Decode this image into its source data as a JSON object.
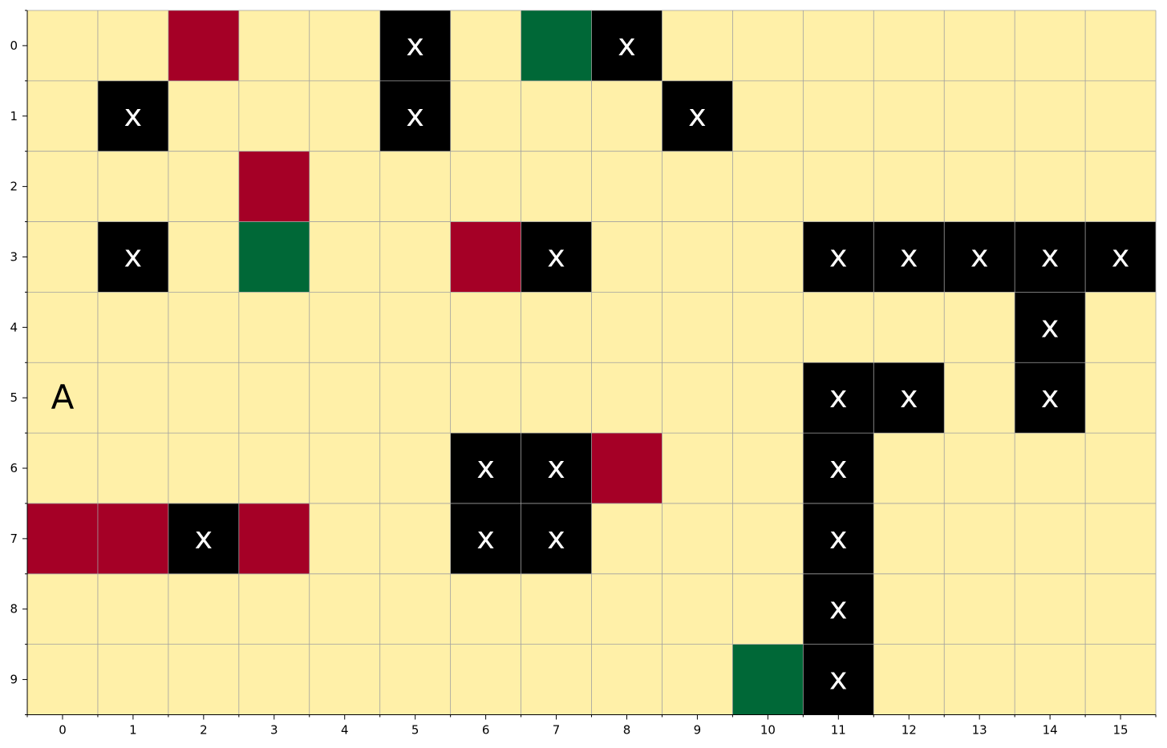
{
  "chart_data": {
    "type": "heatmap",
    "grid": {
      "rows": 10,
      "cols": 16
    },
    "x_ticks": [
      "0",
      "1",
      "2",
      "3",
      "4",
      "5",
      "6",
      "7",
      "8",
      "9",
      "10",
      "11",
      "12",
      "13",
      "14",
      "15"
    ],
    "y_ticks": [
      "0",
      "1",
      "2",
      "3",
      "4",
      "5",
      "6",
      "7",
      "8",
      "9"
    ],
    "colors": {
      "empty": "#fff0a8",
      "wall": "#000000",
      "hazard": "#a50026",
      "goal": "#006837",
      "grid_line": "#a0a0a0",
      "wall_mark": "#ffffff",
      "agent_mark": "#000000"
    },
    "walls": [
      [
        0,
        5
      ],
      [
        0,
        8
      ],
      [
        1,
        1
      ],
      [
        1,
        5
      ],
      [
        1,
        9
      ],
      [
        3,
        1
      ],
      [
        3,
        7
      ],
      [
        3,
        11
      ],
      [
        3,
        12
      ],
      [
        3,
        13
      ],
      [
        3,
        14
      ],
      [
        3,
        15
      ],
      [
        4,
        14
      ],
      [
        5,
        11
      ],
      [
        5,
        12
      ],
      [
        5,
        14
      ],
      [
        6,
        6
      ],
      [
        6,
        7
      ],
      [
        6,
        11
      ],
      [
        7,
        2
      ],
      [
        7,
        6
      ],
      [
        7,
        7
      ],
      [
        7,
        11
      ],
      [
        8,
        11
      ],
      [
        9,
        11
      ]
    ],
    "hazards": [
      [
        0,
        2
      ],
      [
        2,
        3
      ],
      [
        3,
        6
      ],
      [
        6,
        8
      ],
      [
        7,
        0
      ],
      [
        7,
        1
      ],
      [
        7,
        3
      ]
    ],
    "goals": [
      [
        0,
        7
      ],
      [
        3,
        3
      ],
      [
        9,
        10
      ]
    ],
    "wall_mark": "x",
    "agent": {
      "row": 5,
      "col": 0,
      "label": "A"
    }
  }
}
